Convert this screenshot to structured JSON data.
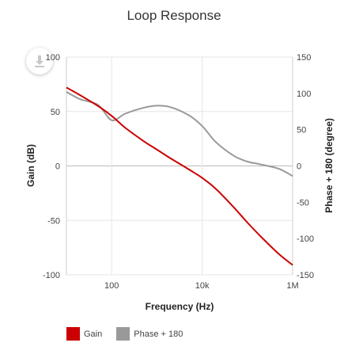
{
  "chart_data": {
    "type": "line",
    "title": "Loop Response",
    "xlabel": "Frequency (Hz)",
    "ylabel_left": "Gain (dB)",
    "ylabel_right": "Phase + 180 (degree)",
    "x_scale": "log",
    "xlim": [
      10,
      1000000
    ],
    "ylim_left": [
      -100,
      100
    ],
    "ylim_right": [
      -150,
      150
    ],
    "x_ticks": [
      {
        "value": 100,
        "label": "100"
      },
      {
        "value": 10000,
        "label": "10k"
      },
      {
        "value": 1000000,
        "label": "1M"
      }
    ],
    "y_ticks_left": [
      100,
      50,
      0,
      -50,
      -100
    ],
    "y_ticks_right": [
      150,
      100,
      50,
      0,
      -50,
      -100,
      -150
    ],
    "grid": true,
    "legend_position": "bottom-left",
    "series": [
      {
        "name": "Gain",
        "axis": "left",
        "color": "#cc0000",
        "x": [
          10,
          20,
          50,
          100,
          200,
          500,
          1000,
          2000,
          5000,
          10000,
          20000,
          50000,
          100000,
          200000,
          500000,
          1000000
        ],
        "y": [
          72,
          65,
          55,
          46,
          35,
          23,
          15,
          7,
          -3,
          -11,
          -21,
          -38,
          -52,
          -65,
          -81,
          -91
        ]
      },
      {
        "name": "Phase + 180",
        "axis": "right",
        "color": "#999999",
        "x": [
          10,
          20,
          50,
          100,
          200,
          500,
          1000,
          2000,
          5000,
          10000,
          20000,
          50000,
          100000,
          200000,
          500000,
          1000000
        ],
        "y": [
          102,
          92,
          84,
          63,
          72,
          80,
          83,
          81,
          70,
          55,
          33,
          14,
          6,
          2,
          -4,
          -14
        ]
      }
    ]
  },
  "toolbar": {
    "download_icon": "download-icon"
  }
}
